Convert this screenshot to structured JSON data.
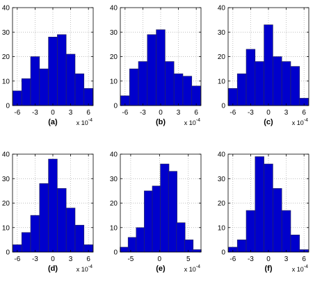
{
  "colors": {
    "bar": "#0000cc",
    "bar_edge": "#2a2a55",
    "grid": "#a8a8a8"
  },
  "chart_data": [
    {
      "type": "bar",
      "subplot_label": "(a)",
      "x_multiplier": {
        "base": "x 10",
        "exponent": "-4"
      },
      "bin_centers": [
        -6,
        -4.5,
        -3,
        -1.5,
        0,
        1.5,
        3,
        4.5,
        6
      ],
      "values": [
        6,
        11,
        20,
        15,
        28,
        29,
        21,
        13,
        7
      ],
      "xticks": [
        -6,
        -3,
        0,
        3,
        6
      ],
      "xlim": [
        -6.8,
        6.8
      ],
      "ylim": [
        0,
        40
      ],
      "yticks": [
        0,
        10,
        20,
        30,
        40
      ],
      "grid": true
    },
    {
      "type": "bar",
      "subplot_label": "(b)",
      "x_multiplier": {
        "base": "x 10",
        "exponent": "-4"
      },
      "bin_centers": [
        -6,
        -4.5,
        -3,
        -1.5,
        0,
        1.5,
        3,
        4.5,
        6
      ],
      "values": [
        4,
        15,
        18,
        29,
        31,
        18,
        13,
        12,
        8
      ],
      "xticks": [
        -6,
        -3,
        0,
        3,
        6
      ],
      "xlim": [
        -6.8,
        6.8
      ],
      "ylim": [
        0,
        40
      ],
      "yticks": [
        0,
        10,
        20,
        30,
        40
      ],
      "grid": true
    },
    {
      "type": "bar",
      "subplot_label": "(c)",
      "x_multiplier": {
        "base": "x 10",
        "exponent": "-4"
      },
      "bin_centers": [
        -6,
        -4.5,
        -3,
        -1.5,
        0,
        1.5,
        3,
        4.5,
        6
      ],
      "values": [
        7,
        13,
        23,
        18,
        33,
        20,
        18,
        16,
        3
      ],
      "xticks": [
        -6,
        -3,
        0,
        3,
        6
      ],
      "xlim": [
        -6.8,
        6.8
      ],
      "ylim": [
        0,
        40
      ],
      "yticks": [
        0,
        10,
        20,
        30,
        40
      ],
      "grid": true
    },
    {
      "type": "bar",
      "subplot_label": "(d)",
      "x_multiplier": {
        "base": "x 10",
        "exponent": "-4"
      },
      "bin_centers": [
        -6,
        -4.5,
        -3,
        -1.5,
        0,
        1.5,
        3,
        4.5,
        6
      ],
      "values": [
        3,
        8,
        15,
        28,
        38,
        26,
        18,
        11,
        3
      ],
      "xticks": [
        -6,
        -3,
        0,
        3,
        6
      ],
      "xlim": [
        -6.8,
        6.8
      ],
      "ylim": [
        0,
        40
      ],
      "yticks": [
        0,
        10,
        20,
        30,
        40
      ],
      "grid": true
    },
    {
      "type": "bar",
      "subplot_label": "(e)",
      "x_multiplier": {
        "base": "x 10",
        "exponent": "-4"
      },
      "bin_centers": [
        -6.1,
        -4.7,
        -3.3,
        -1.9,
        -0.5,
        0.9,
        2.3,
        3.7,
        5.1,
        6.5
      ],
      "values": [
        2,
        6,
        10,
        25,
        27,
        36,
        33,
        12,
        5,
        1
      ],
      "xticks": [
        -5,
        0,
        5
      ],
      "xlim": [
        -6.8,
        7.2
      ],
      "ylim": [
        0,
        40
      ],
      "yticks": [
        0,
        10,
        20,
        30,
        40
      ],
      "grid": true
    },
    {
      "type": "bar",
      "subplot_label": "(f)",
      "x_multiplier": {
        "base": "x 10",
        "exponent": "-4"
      },
      "bin_centers": [
        -6,
        -4.5,
        -3,
        -1.5,
        0,
        1.5,
        3,
        4.5,
        6
      ],
      "values": [
        2,
        5,
        17,
        39,
        36,
        26,
        17,
        7,
        1
      ],
      "xticks": [
        -6,
        -3,
        0,
        3,
        6
      ],
      "xlim": [
        -6.8,
        6.8
      ],
      "ylim": [
        0,
        40
      ],
      "yticks": [
        0,
        10,
        20,
        30,
        40
      ],
      "grid": true
    }
  ]
}
